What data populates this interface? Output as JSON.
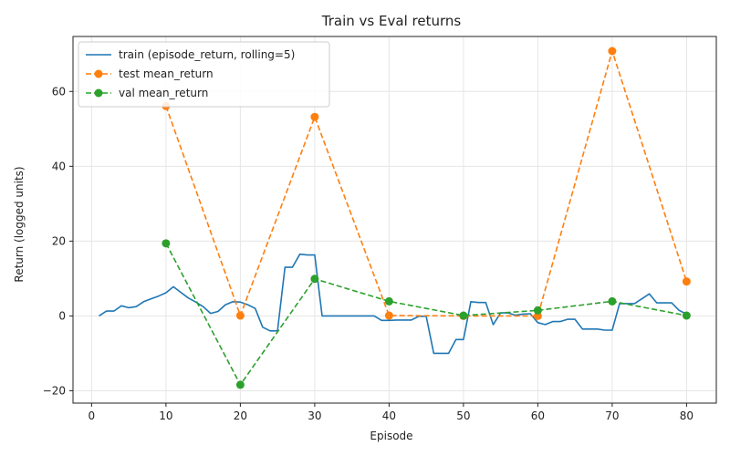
{
  "chart_data": {
    "type": "line",
    "title": "Train vs Eval returns",
    "xlabel": "Episode",
    "ylabel": "Return (logged units)",
    "xlim": [
      -2.5,
      84
    ],
    "ylim": [
      -23.3,
      74.7
    ],
    "x_ticks": [
      0,
      10,
      20,
      30,
      40,
      50,
      60,
      70,
      80
    ],
    "y_ticks": [
      -20,
      0,
      20,
      40,
      60
    ],
    "grid": true,
    "legend_placement": "top-left",
    "series": [
      {
        "name": "train (episode_return, rolling=5)",
        "color": "#1f77b4",
        "style": "solid",
        "marker": "none",
        "x": [
          1,
          2,
          3,
          4,
          5,
          6,
          7,
          8,
          9,
          10,
          11,
          12,
          13,
          14,
          15,
          16,
          17,
          18,
          19,
          20,
          21,
          22,
          23,
          24,
          25,
          26,
          27,
          28,
          29,
          30,
          31,
          32,
          33,
          34,
          35,
          36,
          37,
          38,
          39,
          40,
          41,
          42,
          43,
          44,
          45,
          46,
          47,
          48,
          49,
          50,
          51,
          52,
          53,
          54,
          55,
          56,
          57,
          58,
          59,
          60,
          61,
          62,
          63,
          64,
          65,
          66,
          67,
          68,
          69,
          70,
          71,
          72,
          73,
          74,
          75,
          76,
          77,
          78,
          79,
          80
        ],
        "y": [
          0,
          1.3,
          1.3,
          2.7,
          2.2,
          2.5,
          3.8,
          4.6,
          5.3,
          6.2,
          7.8,
          6.3,
          4.8,
          3.7,
          2.5,
          0.7,
          1.2,
          3.0,
          3.8,
          3.7,
          3.0,
          2.0,
          -3.0,
          -4.0,
          -4.0,
          13.0,
          13.0,
          16.5,
          16.3,
          16.3,
          0,
          0,
          0,
          0,
          0,
          0,
          0,
          0,
          -1.2,
          -1.2,
          -1.1,
          -1.1,
          -1.1,
          -0.1,
          -0.1,
          -10.0,
          -10.0,
          -10.0,
          -6.3,
          -6.3,
          3.8,
          3.6,
          3.6,
          -2.3,
          0.8,
          0.8,
          0.2,
          0.5,
          0.6,
          -1.8,
          -2.3,
          -1.5,
          -1.5,
          -0.9,
          -0.9,
          -3.5,
          -3.5,
          -3.5,
          -3.8,
          -3.8,
          3.3,
          3.3,
          3.3,
          4.6,
          5.9,
          3.5,
          3.5,
          3.5,
          1.5,
          0.5
        ]
      },
      {
        "name": "test mean_return",
        "color": "#ff7f0e",
        "style": "dashed",
        "marker": "circle",
        "x": [
          10,
          20,
          30,
          40,
          50,
          60,
          70,
          80
        ],
        "y": [
          56.1,
          0.1,
          53.2,
          0.1,
          0.0,
          0.0,
          70.8,
          9.2
        ]
      },
      {
        "name": "val mean_return",
        "color": "#2ca02c",
        "style": "dashed",
        "marker": "circle",
        "x": [
          10,
          20,
          30,
          40,
          50,
          60,
          70,
          80
        ],
        "y": [
          19.4,
          -18.4,
          9.9,
          3.9,
          0.1,
          1.5,
          3.9,
          0.1
        ]
      }
    ]
  }
}
